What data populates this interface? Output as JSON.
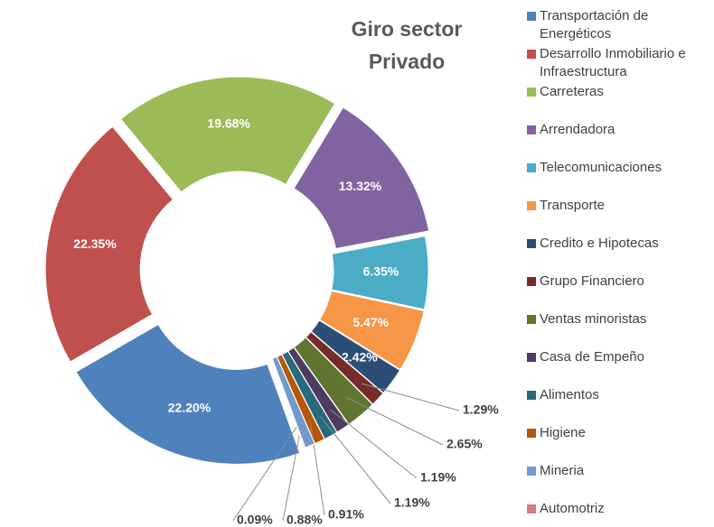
{
  "chart_data": {
    "type": "donut",
    "title": "Giro sector Privado",
    "categories": [
      "Transportación de Energéticos",
      "Desarrollo Inmobiliario e Infraestructura",
      "Carreteras",
      "Arrendadora",
      "Telecomunicaciones",
      "Transporte",
      "Credito e Hipotecas",
      "Grupo Financiero",
      "Ventas minoristas",
      "Casa de Empeño",
      "Alimentos",
      "Higiene",
      "Mineria",
      "Automotriz"
    ],
    "values": [
      22.2,
      22.35,
      19.68,
      13.32,
      6.35,
      5.47,
      2.42,
      1.29,
      2.65,
      1.19,
      1.19,
      0.91,
      0.88,
      0.09
    ],
    "value_labels": [
      "22.20%",
      "22.35%",
      "19.68%",
      "13.32%",
      "6.35%",
      "5.47%",
      "2.42%",
      "1.29%",
      "2.65%",
      "1.19%",
      "1.19%",
      "0.91%",
      "0.88%",
      "0.09%"
    ],
    "colors": [
      "#4f81bd",
      "#c0504d",
      "#9bbb59",
      "#8064a2",
      "#4bacc6",
      "#f79646",
      "#2c4d75",
      "#772c2a",
      "#5f7530",
      "#4d3b62",
      "#276a7c",
      "#b65708",
      "#729aca",
      "#d9797a"
    ],
    "legend": "right"
  }
}
